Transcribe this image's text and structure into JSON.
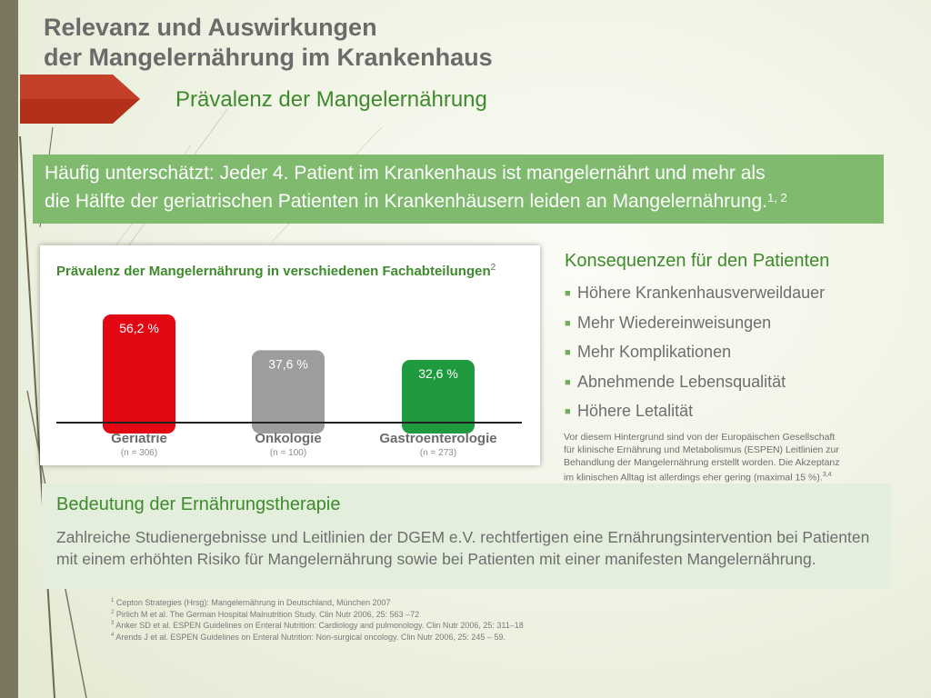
{
  "title": {
    "line1": "Relevanz und Auswirkungen",
    "line2": "der Mangelernährung im Krankenhaus"
  },
  "subtitle": "Prävalenz der Mangelernährung",
  "headline": {
    "line1": "Häufig unterschätzt: Jeder 4. Patient im Krankenhaus ist mangelernährt und mehr als",
    "line2": "die Hälfte der geriatrischen Patienten in Krankenhäusern leiden an Mangelernährung.",
    "refs": "1, 2"
  },
  "chart": {
    "title": "Prävalenz der Mangelernährung in verschiedenen Fachabteilungen",
    "title_ref": "2"
  },
  "chart_data": {
    "type": "bar",
    "title": "Prävalenz der Mangelernährung in verschiedenen Fachabteilungen",
    "categories": [
      "Geriatrie",
      "Onkologie",
      "Gastroenterologie"
    ],
    "sample_sizes": [
      "(n = 306)",
      "(n = 100)",
      "(n = 273)"
    ],
    "values": [
      56.2,
      37.6,
      32.6
    ],
    "value_labels": [
      "56,2 %",
      "37,6 %",
      "32,6 %"
    ],
    "colors": [
      "#e30613",
      "#9d9d9d",
      "#1f9a3f"
    ],
    "unit": "%",
    "ylim": [
      0,
      60
    ],
    "grid": false,
    "legend": "none"
  },
  "consequences": {
    "title": "Konsequenzen für den Patienten",
    "items": [
      "Höhere Krankenhausverweildauer",
      "Mehr Wiedereinweisungen",
      "Mehr Komplikationen",
      "Abnehmende Lebensqualität",
      "Höhere Letalität"
    ],
    "note_lines": [
      "Vor diesem Hintergrund sind von der Europäischen Gesellschaft",
      "für klinische Ernährung und Metabolismus (ESPEN) Leitlinien zur",
      "Behandlung der Mangelernährung erstellt worden. Die Akzeptanz",
      "im klinischen Alltag ist allerdings eher gering (maximal 15 %)."
    ],
    "note_refs": "3,4"
  },
  "therapy": {
    "title": "Bedeutung der Ernährungstherapie",
    "text": "Zahlreiche Studienergebnisse und Leitlinien der DGEM e.V. rechtfertigen eine Ernährungsintervention bei Patienten mit einem erhöhten Risiko für Mangelernährung sowie bei Patienten mit einer manifesten Mangelernährung."
  },
  "references": [
    {
      "num": "1",
      "text": "Cepton Strategies (Hrsg): Mangelernährung in Deutschland, München 2007"
    },
    {
      "num": "2",
      "text": "Pirlich M et al. The German Hospital Malnutrition Study. Clin Nutr 2006, 25: 563 –72"
    },
    {
      "num": "3",
      "text": "Anker SD et al. ESPEN Guidelines on Enteral Nutrition: Cardiology and pulmonology. Clin Nutr 2006, 25: 311–18"
    },
    {
      "num": "4",
      "text": "Arends J et al. ESPEN Guidelines on Enteral Nutrition: Non-surgical oncology. Clin Nutr 2006, 25: 245 – 59."
    }
  ],
  "colors": {
    "accent_green": "#3e8a2c",
    "headline_green": "#7fba6e",
    "arrow_red": "#b5301a",
    "sidebar": "#7a7660",
    "therapy_box": "#e3eedd"
  }
}
